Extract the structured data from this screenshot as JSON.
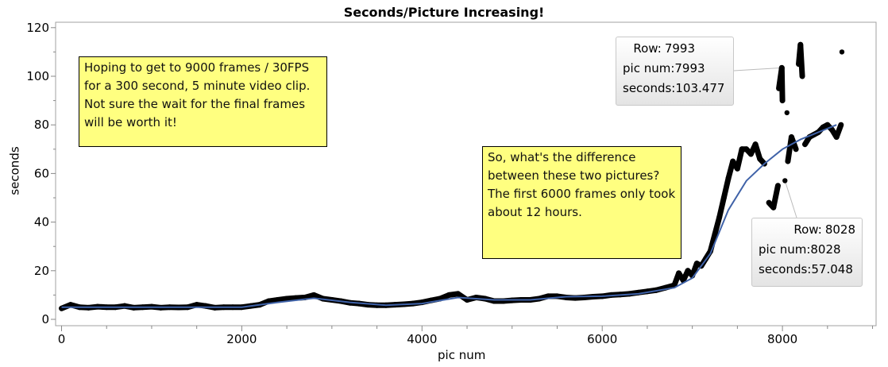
{
  "chart_data": {
    "type": "scatter",
    "title": "Seconds/Picture Increasing!",
    "xlabel": "pic num",
    "ylabel": "seconds",
    "xlim": [
      -100,
      9000
    ],
    "ylim": [
      0,
      120
    ],
    "xticks": [
      "0",
      "2000",
      "4000",
      "6000",
      "8000"
    ],
    "yticks": [
      "0",
      "20",
      "40",
      "60",
      "80",
      "100",
      "120"
    ],
    "grid": false,
    "colors": {
      "points": "#000000",
      "fit": "#3f62a8",
      "note": "#ffff80"
    },
    "points": [
      [
        0,
        4.5
      ],
      [
        100,
        6
      ],
      [
        200,
        5
      ],
      [
        300,
        4.8
      ],
      [
        400,
        5.2
      ],
      [
        500,
        5
      ],
      [
        600,
        5
      ],
      [
        700,
        5.5
      ],
      [
        800,
        4.8
      ],
      [
        900,
        5
      ],
      [
        1000,
        5.2
      ],
      [
        1100,
        4.8
      ],
      [
        1200,
        5
      ],
      [
        1300,
        4.9
      ],
      [
        1400,
        5
      ],
      [
        1500,
        6
      ],
      [
        1600,
        5.5
      ],
      [
        1700,
        4.8
      ],
      [
        1800,
        5
      ],
      [
        1900,
        5
      ],
      [
        2000,
        5
      ],
      [
        2100,
        5.5
      ],
      [
        2200,
        6
      ],
      [
        2300,
        7.5
      ],
      [
        2400,
        8
      ],
      [
        2500,
        8.5
      ],
      [
        2600,
        8.8
      ],
      [
        2700,
        9
      ],
      [
        2800,
        10
      ],
      [
        2900,
        8.5
      ],
      [
        3000,
        8
      ],
      [
        3100,
        7.5
      ],
      [
        3200,
        6.8
      ],
      [
        3300,
        6.5
      ],
      [
        3400,
        6
      ],
      [
        3500,
        5.8
      ],
      [
        3600,
        5.8
      ],
      [
        3700,
        6
      ],
      [
        3800,
        6.2
      ],
      [
        3900,
        6.5
      ],
      [
        4000,
        7
      ],
      [
        4100,
        7.8
      ],
      [
        4200,
        8.5
      ],
      [
        4300,
        10
      ],
      [
        4400,
        10.5
      ],
      [
        4500,
        8
      ],
      [
        4600,
        9
      ],
      [
        4700,
        8.5
      ],
      [
        4800,
        7.5
      ],
      [
        4900,
        7.5
      ],
      [
        5000,
        7.8
      ],
      [
        5100,
        8
      ],
      [
        5200,
        8
      ],
      [
        5300,
        8.5
      ],
      [
        5400,
        9.5
      ],
      [
        5500,
        9.5
      ],
      [
        5600,
        9
      ],
      [
        5700,
        8.8
      ],
      [
        5800,
        9
      ],
      [
        5900,
        9.3
      ],
      [
        6000,
        9.5
      ],
      [
        6100,
        10
      ],
      [
        6200,
        10.2
      ],
      [
        6300,
        10.5
      ],
      [
        6400,
        11
      ],
      [
        6500,
        11.5
      ],
      [
        6600,
        12
      ],
      [
        6700,
        13
      ],
      [
        6800,
        14
      ],
      [
        6850,
        19
      ],
      [
        6900,
        16
      ],
      [
        6950,
        20
      ],
      [
        7000,
        18
      ],
      [
        7050,
        23
      ],
      [
        7100,
        22
      ],
      [
        7150,
        25
      ],
      [
        7200,
        28
      ],
      [
        7250,
        35
      ],
      [
        7300,
        42
      ],
      [
        7350,
        50
      ],
      [
        7400,
        58
      ],
      [
        7450,
        65
      ],
      [
        7500,
        62
      ],
      [
        7550,
        70
      ],
      [
        7600,
        70
      ],
      [
        7650,
        68
      ],
      [
        7700,
        72
      ],
      [
        7750,
        66
      ],
      [
        7800,
        64
      ],
      [
        7850,
        48
      ],
      [
        7900,
        46
      ],
      [
        7950,
        55
      ],
      [
        7960,
        95
      ],
      [
        7993,
        103.477
      ],
      [
        8000,
        90
      ],
      [
        8028,
        57.048
      ],
      [
        8050,
        85
      ],
      [
        8060,
        65
      ],
      [
        8100,
        75
      ],
      [
        8150,
        70
      ],
      [
        8180,
        105
      ],
      [
        8200,
        113
      ],
      [
        8220,
        100
      ],
      [
        8250,
        72
      ],
      [
        8300,
        75
      ],
      [
        8350,
        76
      ],
      [
        8400,
        77
      ],
      [
        8450,
        79
      ],
      [
        8500,
        80
      ],
      [
        8550,
        78
      ],
      [
        8600,
        75
      ],
      [
        8650,
        80
      ],
      [
        8660,
        110
      ]
    ],
    "fit": [
      [
        0,
        5
      ],
      [
        1000,
        5
      ],
      [
        2000,
        5
      ],
      [
        2400,
        7
      ],
      [
        2800,
        8.7
      ],
      [
        3200,
        7
      ],
      [
        3600,
        5.8
      ],
      [
        4000,
        6.5
      ],
      [
        4400,
        9
      ],
      [
        4800,
        8
      ],
      [
        5200,
        8
      ],
      [
        5600,
        9.3
      ],
      [
        6000,
        9.5
      ],
      [
        6400,
        10.5
      ],
      [
        6800,
        13
      ],
      [
        7000,
        17
      ],
      [
        7200,
        27
      ],
      [
        7400,
        45
      ],
      [
        7600,
        57
      ],
      [
        7800,
        64
      ],
      [
        8000,
        70
      ],
      [
        8200,
        74
      ],
      [
        8400,
        77
      ],
      [
        8600,
        80
      ]
    ],
    "annotations": [
      "Hoping to get to 9000 frames / 30FPS for a 300 second, 5 minute video clip. Not sure the wait for the final frames will be worth it!",
      "So, what's the difference between these two pictures? The first 6000 frames only took about 12 hours."
    ],
    "tooltips": [
      {
        "row_label": "Row:",
        "row": "7993",
        "x_label": "pic num:",
        "x": "7993",
        "y_label": "seconds:",
        "y": "103.477"
      },
      {
        "row_label": "Row:",
        "row": "8028",
        "x_label": "pic num:",
        "x": "8028",
        "y_label": "seconds:",
        "y": "57.048"
      }
    ]
  }
}
